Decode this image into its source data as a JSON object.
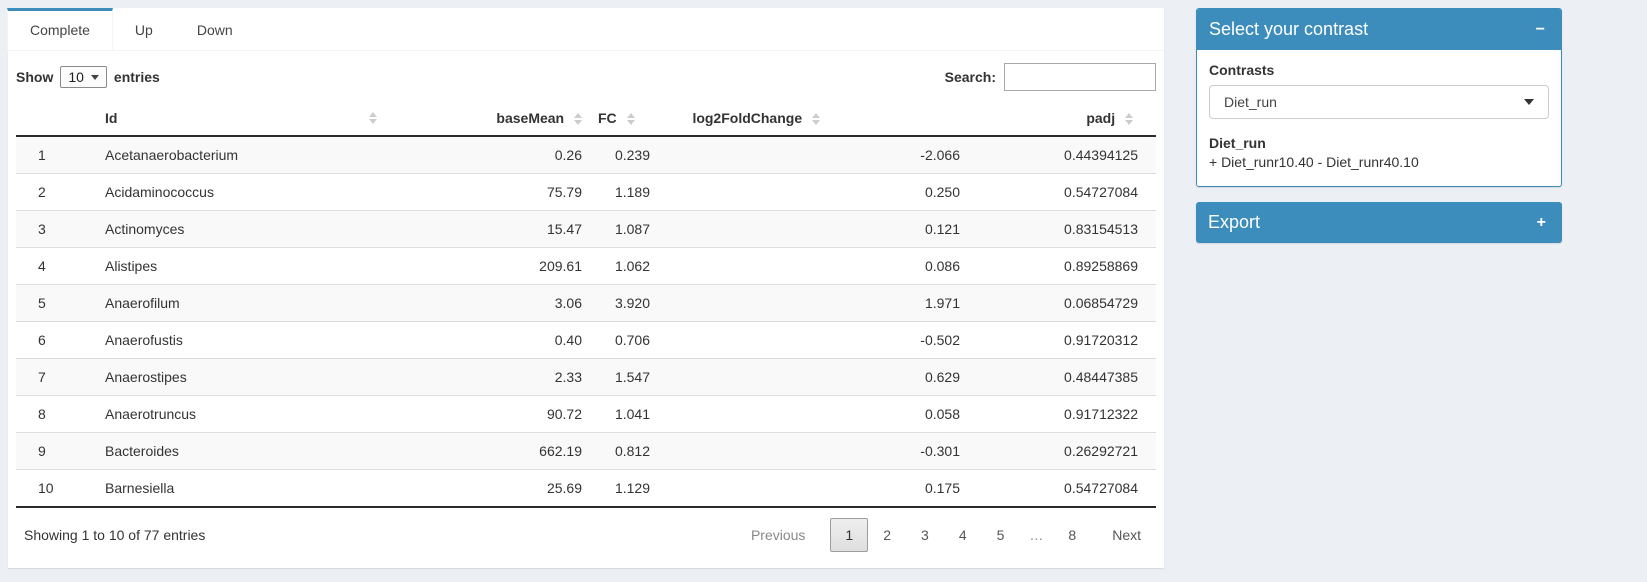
{
  "tabs": [
    {
      "label": "Complete",
      "active": true
    },
    {
      "label": "Up",
      "active": false
    },
    {
      "label": "Down",
      "active": false
    }
  ],
  "length_control": {
    "prefix": "Show",
    "value": "10",
    "suffix": "entries"
  },
  "search": {
    "label": "Search:",
    "value": ""
  },
  "table": {
    "columns": [
      {
        "label": "",
        "key": "rownum",
        "sortable": false
      },
      {
        "label": "Id",
        "key": "id",
        "sortable": true
      },
      {
        "label": "baseMean",
        "key": "baseMean",
        "sortable": true
      },
      {
        "label": "FC",
        "key": "fc",
        "sortable": true
      },
      {
        "label": "log2FoldChange",
        "key": "log2FoldChange",
        "sortable": true
      },
      {
        "label": "padj",
        "key": "padj",
        "sortable": true
      }
    ],
    "rows": [
      [
        "1",
        "Acetanaerobacterium",
        "0.26",
        "0.239",
        "-2.066",
        "0.44394125"
      ],
      [
        "2",
        "Acidaminococcus",
        "75.79",
        "1.189",
        "0.250",
        "0.54727084"
      ],
      [
        "3",
        "Actinomyces",
        "15.47",
        "1.087",
        "0.121",
        "0.83154513"
      ],
      [
        "4",
        "Alistipes",
        "209.61",
        "1.062",
        "0.086",
        "0.89258869"
      ],
      [
        "5",
        "Anaerofilum",
        "3.06",
        "3.920",
        "1.971",
        "0.06854729"
      ],
      [
        "6",
        "Anaerofustis",
        "0.40",
        "0.706",
        "-0.502",
        "0.91720312"
      ],
      [
        "7",
        "Anaerostipes",
        "2.33",
        "1.547",
        "0.629",
        "0.48447385"
      ],
      [
        "8",
        "Anaerotruncus",
        "90.72",
        "1.041",
        "0.058",
        "0.91712322"
      ],
      [
        "9",
        "Bacteroides",
        "662.19",
        "0.812",
        "-0.301",
        "0.26292721"
      ],
      [
        "10",
        "Barnesiella",
        "25.69",
        "1.129",
        "0.175",
        "0.54727084"
      ]
    ]
  },
  "footer": {
    "info": "Showing 1 to 10 of 77 entries",
    "pagination": {
      "previous": "Previous",
      "pages": [
        "1",
        "2",
        "3",
        "4",
        "5",
        "…",
        "8"
      ],
      "active": "1",
      "next": "Next"
    }
  },
  "contrast_panel": {
    "title": "Select your contrast",
    "collapse_icon": "−",
    "contrasts_label": "Contrasts",
    "select_value": "Diet_run",
    "detail_title": "Diet_run",
    "detail_text": "+ Diet_runr10.40 - Diet_runr40.10"
  },
  "export_panel": {
    "title": "Export",
    "expand_icon": "+"
  },
  "colors": {
    "primary": "#3c8dbc",
    "page_bg": "#ecf0f5"
  }
}
